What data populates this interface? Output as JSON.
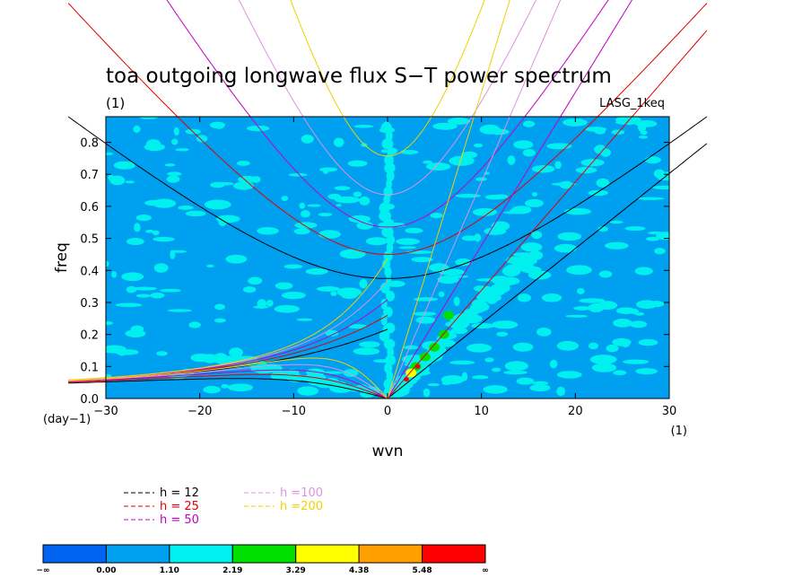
{
  "chart_data": {
    "type": "heatmap",
    "title": "toa outgoing longwave flux S−T power spectrum",
    "title_unit": "(1)",
    "model_label": "LASG_1keq",
    "xlabel": "wvn",
    "ylabel": "freq",
    "x_unit": "(1)",
    "y_unit": "(day−1)",
    "xlim": [
      -30,
      30
    ],
    "ylim": [
      0,
      0.88
    ],
    "x_ticks": [
      "−30",
      "−20",
      "−10",
      "0",
      "10",
      "20",
      "30"
    ],
    "x_tick_values": [
      -30,
      -20,
      -10,
      0,
      10,
      20,
      30
    ],
    "y_ticks": [
      "0.0",
      "0.1",
      "0.2",
      "0.3",
      "0.4",
      "0.5",
      "0.6",
      "0.7",
      "0.8"
    ],
    "y_tick_values": [
      0,
      0.1,
      0.2,
      0.3,
      0.4,
      0.5,
      0.6,
      0.7,
      0.8
    ],
    "background_level_color": "#00a0f0",
    "dispersion_curves": [
      {
        "label": "h = 12",
        "color": "#000000",
        "h": 12
      },
      {
        "label": "h = 25",
        "color": "#e00000",
        "h": 25
      },
      {
        "label": "h = 50",
        "color": "#c000c0",
        "h": 50
      },
      {
        "label": "h =100",
        "color": "#e090e0",
        "h": 100
      },
      {
        "label": "h =200",
        "color": "#f0d000",
        "h": 200
      }
    ],
    "colorbar": {
      "levels": [
        "−∞",
        "0.00",
        "1.10",
        "2.19",
        "3.29",
        "4.38",
        "5.48",
        "∞"
      ],
      "colors": [
        "#0064f0",
        "#00a0f0",
        "#00f0f0",
        "#00e000",
        "#ffff00",
        "#ffa000",
        "#ff0000"
      ]
    }
  }
}
